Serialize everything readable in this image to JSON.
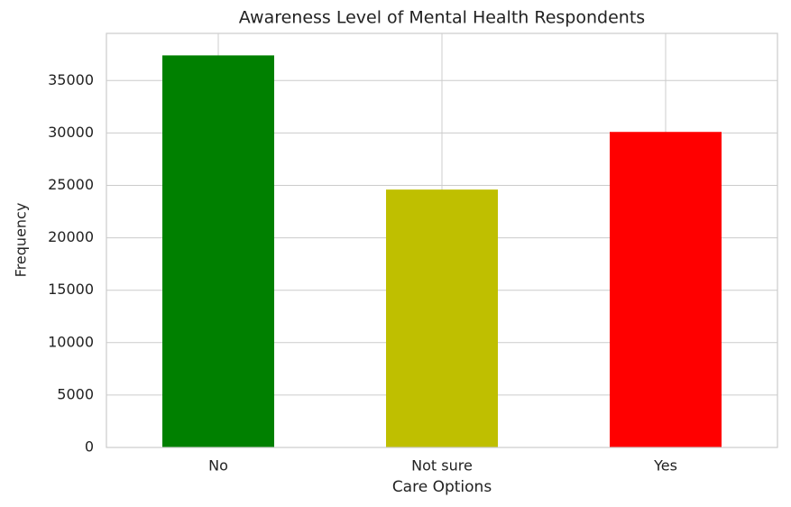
{
  "chart_data": {
    "type": "bar",
    "title": "Awareness Level of Mental Health Respondents",
    "xlabel": "Care Options",
    "ylabel": "Frequency",
    "categories": [
      "No",
      "Not sure",
      "Yes"
    ],
    "values": [
      37400,
      24600,
      30100
    ],
    "colors": [
      "#008000",
      "#bfbf00",
      "#ff0000"
    ],
    "ylim": [
      0,
      39500
    ],
    "yticks": [
      0,
      5000,
      10000,
      15000,
      20000,
      25000,
      30000,
      35000
    ],
    "grid": true
  }
}
